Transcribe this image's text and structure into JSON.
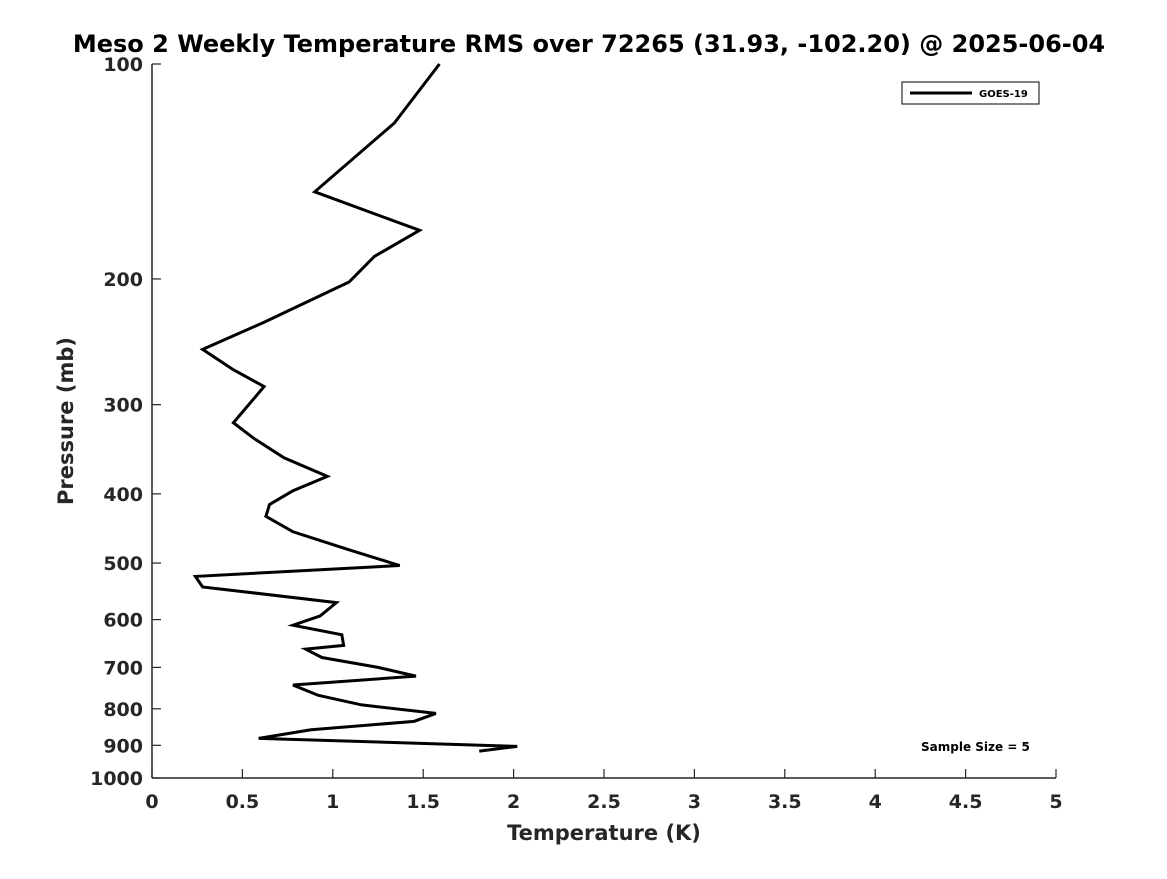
{
  "chart_data": {
    "type": "line",
    "title": "Meso 2 Weekly Temperature RMS over 72265 (31.93, -102.20) @ 2025-06-04",
    "xlabel": "Temperature (K)",
    "ylabel": "Pressure (mb)",
    "xlim": [
      0,
      5
    ],
    "ylim": [
      1000,
      100
    ],
    "yscale": "log",
    "y_reversed": true,
    "grid": false,
    "legend_position": "top-right",
    "xticks": [
      "0",
      "0.5",
      "1",
      "1.5",
      "2",
      "2.5",
      "3",
      "3.5",
      "4",
      "4.5",
      "5"
    ],
    "yticks": [
      "100",
      "200",
      "300",
      "400",
      "500",
      "600",
      "700",
      "800",
      "900",
      "1000"
    ],
    "annotation": "Sample Size = 5",
    "series": [
      {
        "name": "GOES-19",
        "color": "#000000",
        "x": [
          1.59,
          1.34,
          0.9,
          1.48,
          1.23,
          1.09,
          0.62,
          0.28,
          0.45,
          0.62,
          0.45,
          0.56,
          0.73,
          0.97,
          0.78,
          0.65,
          0.63,
          0.78,
          1.09,
          1.37,
          0.24,
          0.28,
          1.02,
          0.93,
          0.78,
          1.05,
          1.06,
          0.85,
          0.94,
          1.25,
          1.46,
          0.78,
          0.92,
          1.16,
          1.57,
          1.45,
          0.88,
          0.59,
          2.02,
          1.81
        ],
        "y": [
          100,
          121,
          151,
          171,
          186,
          202,
          230,
          251,
          268,
          283,
          318,
          334,
          356,
          378,
          396,
          414,
          430,
          452,
          479,
          504,
          522,
          540,
          568,
          593,
          611,
          630,
          652,
          660,
          678,
          700,
          720,
          741,
          766,
          790,
          812,
          833,
          856,
          880,
          903,
          917
        ]
      }
    ]
  }
}
